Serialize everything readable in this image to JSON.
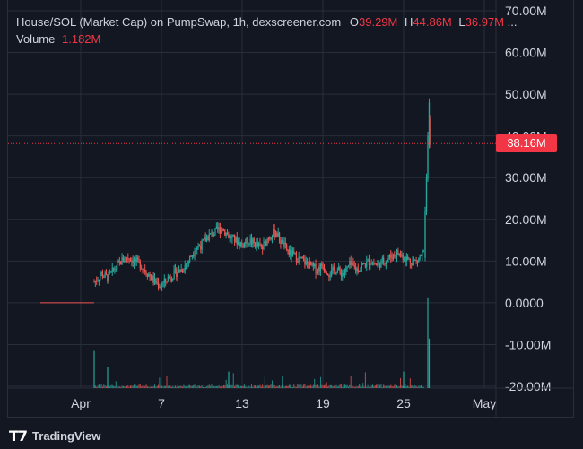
{
  "legend": {
    "title": "House/SOL (Market Cap) on PumpSwap, 1h, dexscreener.com",
    "open_label": "O",
    "open_value": "39.29M",
    "high_label": "H",
    "high_value": "44.86M",
    "low_label": "L",
    "low_value": "36.97M",
    "more": "...",
    "volume_label": "Volume",
    "volume_value": "1.182M"
  },
  "price_tag": "38.16M",
  "branding": {
    "logo_text": "TradingView"
  },
  "colors": {
    "up": "#26a69a",
    "down": "#ef5350",
    "accent": "#f23645",
    "background": "#131722",
    "grid": "#2a2e39"
  },
  "chart_data": {
    "type": "candlestick",
    "title": "House/SOL (Market Cap) on PumpSwap, 1h, dexscreener.com",
    "y_ticks": [
      "70.00M",
      "60.00M",
      "50.00M",
      "40.00M",
      "30.00M",
      "20.00M",
      "10.00M",
      "0.0000",
      "-10.00M",
      "-20.00M"
    ],
    "y_range_millions": [
      -20,
      70
    ],
    "x_ticks": [
      "Apr",
      "7",
      "13",
      "19",
      "25",
      "May"
    ],
    "current_value": "38.16M",
    "series": [
      {
        "name": "Market Cap",
        "trend_millions": [
          [
            0,
            0
          ],
          [
            0.5,
            0.2
          ],
          [
            0.9,
            1
          ],
          [
            1,
            5
          ],
          [
            1.3,
            6
          ],
          [
            1.5,
            7
          ],
          [
            2,
            6
          ],
          [
            2.5,
            8
          ],
          [
            3,
            10
          ],
          [
            3.5,
            11
          ],
          [
            4,
            10
          ],
          [
            4.5,
            9
          ],
          [
            5,
            7
          ],
          [
            5.5,
            5
          ],
          [
            6,
            4
          ],
          [
            6.5,
            6
          ],
          [
            7,
            7
          ],
          [
            7.5,
            8
          ],
          [
            8,
            10
          ],
          [
            8.5,
            13
          ],
          [
            9,
            14
          ],
          [
            9.5,
            16
          ],
          [
            10,
            17
          ],
          [
            10.5,
            18
          ],
          [
            11,
            16
          ],
          [
            11.5,
            15
          ],
          [
            12,
            14
          ],
          [
            12.5,
            15
          ],
          [
            13,
            14
          ],
          [
            13.5,
            13
          ],
          [
            14,
            16
          ],
          [
            14.5,
            17
          ],
          [
            15,
            14
          ],
          [
            15.5,
            12
          ],
          [
            16,
            11
          ],
          [
            16.5,
            10
          ],
          [
            17,
            9
          ],
          [
            17.5,
            8
          ],
          [
            18,
            9
          ],
          [
            18.5,
            7
          ],
          [
            19,
            8
          ],
          [
            19.5,
            7
          ],
          [
            20,
            9
          ],
          [
            20.5,
            8
          ],
          [
            21,
            9
          ],
          [
            21.5,
            10
          ],
          [
            22,
            9
          ],
          [
            22.5,
            10
          ],
          [
            23,
            11
          ],
          [
            23.5,
            12
          ],
          [
            24,
            11
          ],
          [
            24.5,
            10
          ],
          [
            25,
            10
          ],
          [
            25.2,
            11
          ],
          [
            25.5,
            12
          ],
          [
            25.7,
            22
          ],
          [
            25.8,
            30
          ],
          [
            25.9,
            38
          ],
          [
            26,
            44
          ],
          [
            26.1,
            38.16
          ]
        ]
      },
      {
        "name": "Volume",
        "spikes": [
          [
            1,
            9
          ],
          [
            2,
            5
          ],
          [
            11,
            4
          ],
          [
            15,
            3
          ],
          [
            24,
            4
          ],
          [
            25.8,
            22
          ],
          [
            25.9,
            12
          ]
        ]
      }
    ]
  }
}
